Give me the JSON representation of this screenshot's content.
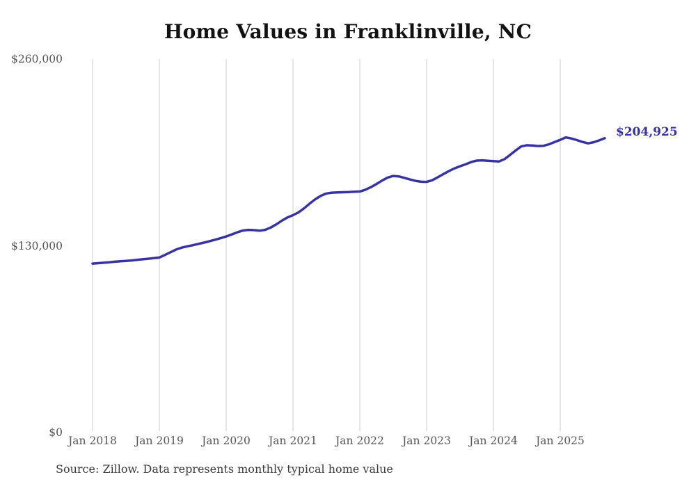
{
  "page": {
    "background": "#ffffff"
  },
  "chart": {
    "source_note": "Source: Zillow. Data represents monthly typical home value",
    "colors": {
      "line": "#3733a3",
      "grid": "#cccccc",
      "title": "#121212",
      "tick_label": "#555555",
      "source_text": "#3a3a3a",
      "annotation": "#3733a3",
      "background": "#ffffff"
    }
  },
  "chart_data": {
    "type": "line",
    "title": "Home Values in Franklinville, NC",
    "xlabel": "",
    "ylabel": "",
    "x_start": "2018-01",
    "x_end": "2025-09",
    "frequency": "monthly",
    "x_tick_labels": [
      "Jan 2018",
      "Jan 2019",
      "Jan 2020",
      "Jan 2021",
      "Jan 2022",
      "Jan 2023",
      "Jan 2024",
      "Jan 2025"
    ],
    "y_ticks": [
      {
        "value": 0,
        "label": "$0"
      },
      {
        "value": 130000,
        "label": "$130,000"
      },
      {
        "value": 260000,
        "label": "$260,000"
      }
    ],
    "ylim": [
      0,
      260000
    ],
    "grid": "vertical-year-lines-only",
    "legend": "none",
    "end_annotation": "$204,925",
    "latest_value": 204925,
    "series": [
      {
        "name": "Typical home value",
        "values": [
          117600,
          117900,
          118200,
          118500,
          118900,
          119200,
          119500,
          119800,
          120200,
          120600,
          121000,
          121400,
          121800,
          123600,
          125500,
          127400,
          128700,
          129600,
          130400,
          131300,
          132200,
          133200,
          134200,
          135300,
          136500,
          137900,
          139400,
          140600,
          141100,
          140900,
          140500,
          141100,
          142700,
          144900,
          147500,
          149700,
          151300,
          153300,
          156100,
          159400,
          162400,
          164800,
          166400,
          167000,
          167200,
          167300,
          167400,
          167600,
          167800,
          169000,
          170800,
          173000,
          175400,
          177500,
          178600,
          178300,
          177300,
          176200,
          175200,
          174600,
          174500,
          175600,
          177700,
          179900,
          182000,
          183900,
          185400,
          186700,
          188300,
          189300,
          189500,
          189200,
          188900,
          188700,
          190400,
          193300,
          196400,
          199200,
          200000,
          199800,
          199500,
          199600,
          200700,
          202300,
          203800,
          205500,
          204700,
          203600,
          202300,
          201300,
          202100,
          203400,
          204925
        ]
      }
    ]
  }
}
